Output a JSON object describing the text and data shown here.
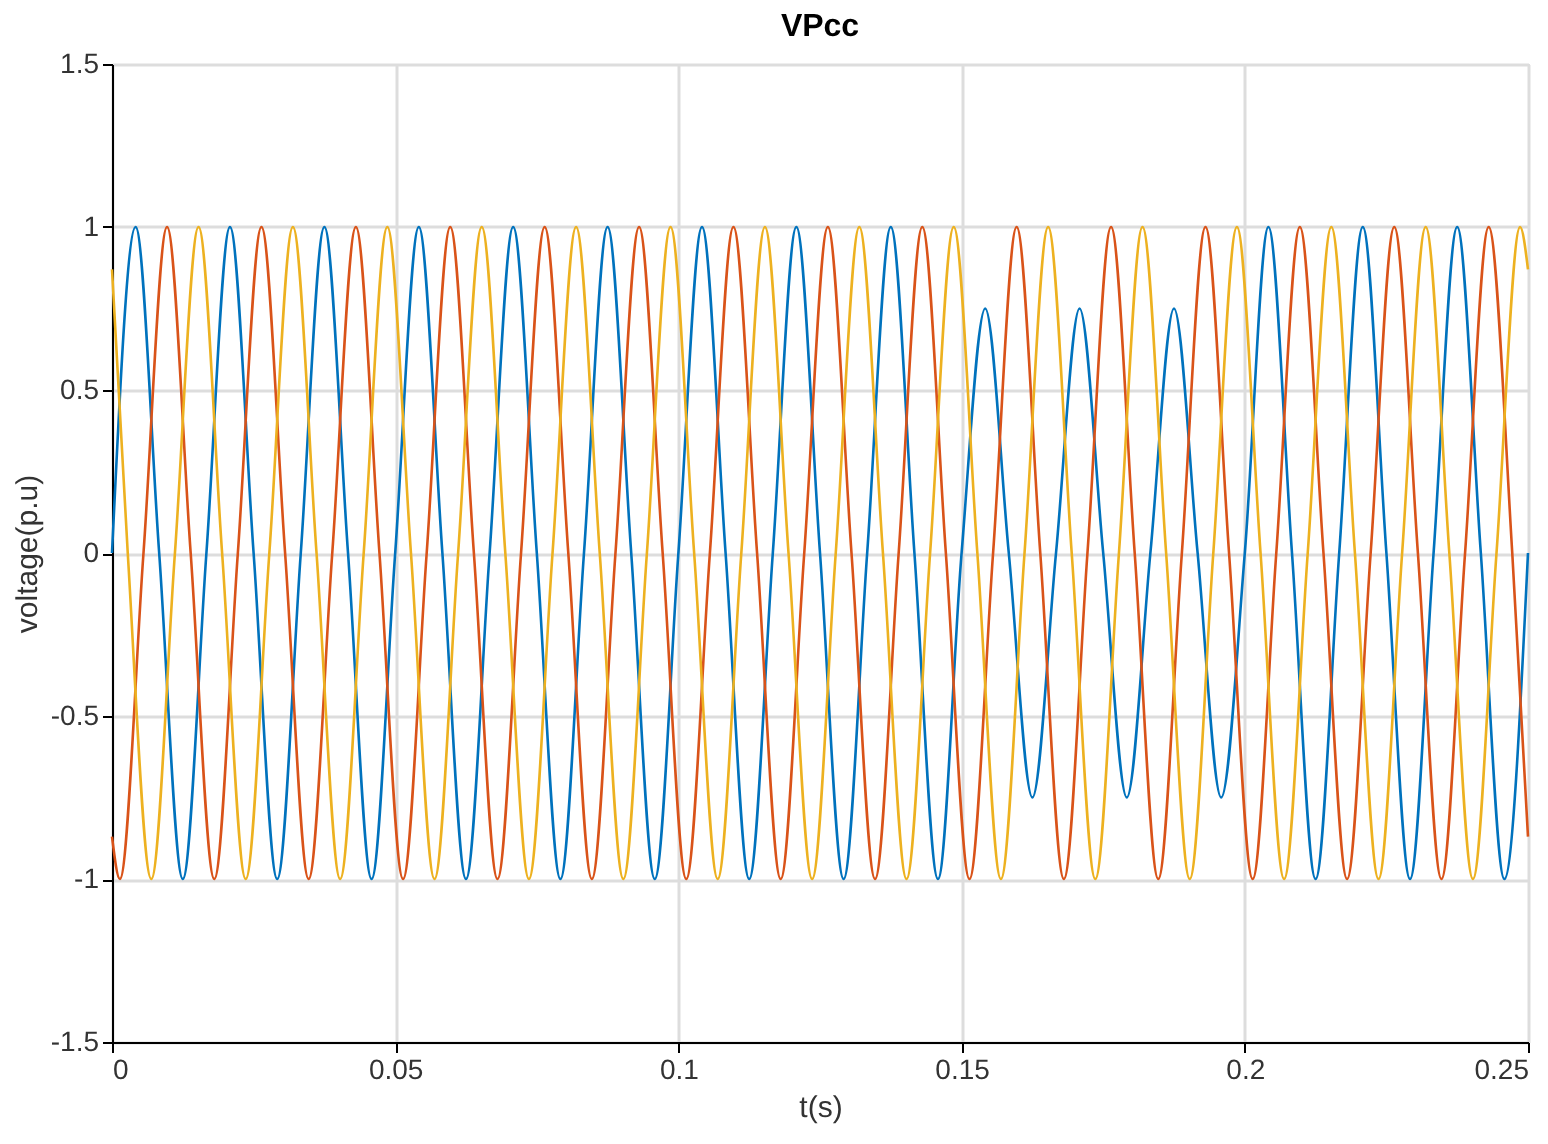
{
  "chart_data": {
    "type": "line",
    "title": "VPcc",
    "xlabel": "t(s)",
    "ylabel": "voltage(p.u)",
    "xlim": [
      0,
      0.25
    ],
    "xticks": [
      0,
      0.05,
      0.1,
      0.15,
      0.2,
      0.25
    ],
    "ylim": [
      -1.5,
      1.5
    ],
    "yticks": [
      -1.5,
      -1,
      -0.5,
      0,
      0.5,
      1,
      1.5
    ],
    "grid": true,
    "marker": "none",
    "line_style": "solid",
    "series": [
      {
        "color": "#0072bd",
        "x": [
          0,
          0.00417,
          0.00833,
          0.0125,
          0.01667,
          0.02083,
          0.025,
          0.02917,
          0.03333,
          0.0375,
          0.04167,
          0.04583,
          0.05,
          0.05417,
          0.05833,
          0.0625,
          0.06667,
          0.07083,
          0.075,
          0.07917,
          0.08333,
          0.0875,
          0.09167,
          0.09583,
          0.1,
          0.10417,
          0.10833,
          0.1125,
          0.11667,
          0.12083,
          0.125,
          0.12917,
          0.13333,
          0.1375,
          0.14167,
          0.14583,
          0.15,
          0.15417,
          0.15833,
          0.1625,
          0.16667,
          0.17083,
          0.175,
          0.17917,
          0.18333,
          0.1875,
          0.19167,
          0.19583,
          0.2,
          0.20417,
          0.20833,
          0.2125,
          0.21667,
          0.22083,
          0.225,
          0.22917,
          0.23333,
          0.2375,
          0.24167,
          0.24583,
          0.25
        ],
        "values": [
          0,
          1,
          0,
          -1,
          0,
          1,
          0,
          -1,
          0,
          1,
          0,
          -1,
          0,
          1,
          0,
          -1,
          0,
          1,
          0,
          -1,
          0,
          1,
          0,
          -1,
          0,
          1,
          0,
          -1,
          0,
          1,
          0,
          -1,
          0,
          1,
          0,
          -1,
          0,
          0.75,
          0,
          -0.75,
          0,
          0.75,
          0,
          -0.75,
          0,
          0.75,
          0,
          -0.75,
          0,
          1,
          0,
          -1,
          0,
          1,
          0,
          -1,
          0,
          1,
          0,
          -1,
          0
        ]
      },
      {
        "color": "#d95319",
        "x": [
          0,
          0.00139,
          0.00556,
          0.00972,
          0.01389,
          0.01806,
          0.02222,
          0.02639,
          0.03056,
          0.03472,
          0.03889,
          0.04306,
          0.04722,
          0.05139,
          0.05556,
          0.05972,
          0.06389,
          0.06806,
          0.07222,
          0.07639,
          0.08056,
          0.08472,
          0.08889,
          0.09306,
          0.09722,
          0.10139,
          0.10556,
          0.10972,
          0.11389,
          0.11806,
          0.12222,
          0.12639,
          0.13056,
          0.13472,
          0.13889,
          0.14306,
          0.14722,
          0.15139,
          0.15556,
          0.15972,
          0.16389,
          0.16806,
          0.17222,
          0.17639,
          0.18056,
          0.18472,
          0.18889,
          0.19306,
          0.19722,
          0.20139,
          0.20556,
          0.20972,
          0.21389,
          0.21806,
          0.22222,
          0.22639,
          0.23056,
          0.23472,
          0.23889,
          0.24306,
          0.24722,
          0.25
        ],
        "values": [
          -0.87,
          -1,
          0,
          1,
          0,
          -1,
          0,
          1,
          0,
          -1,
          0,
          1,
          0,
          -1,
          0,
          1,
          0,
          -1,
          0,
          1,
          0,
          -1,
          0,
          1,
          0,
          -1,
          0,
          1,
          0,
          -1,
          0,
          1,
          0,
          -1,
          0,
          1,
          0,
          -1,
          0,
          1,
          0,
          -1,
          0,
          1,
          0,
          -1,
          0,
          1,
          0,
          -1,
          0,
          1,
          0,
          -1,
          0,
          1,
          0,
          -1,
          0,
          1,
          0,
          -0.87
        ]
      },
      {
        "color": "#edb120",
        "x": [
          0,
          0.00278,
          0.00694,
          0.01111,
          0.01528,
          0.01944,
          0.02361,
          0.02778,
          0.03194,
          0.03611,
          0.04028,
          0.04444,
          0.04861,
          0.05278,
          0.05694,
          0.06111,
          0.06528,
          0.06944,
          0.07361,
          0.07778,
          0.08194,
          0.08611,
          0.09028,
          0.09444,
          0.09861,
          0.10278,
          0.10694,
          0.11111,
          0.11528,
          0.11944,
          0.12361,
          0.12778,
          0.13194,
          0.13611,
          0.14028,
          0.14444,
          0.14861,
          0.15278,
          0.15694,
          0.16111,
          0.16528,
          0.16944,
          0.17361,
          0.17778,
          0.18194,
          0.18611,
          0.19028,
          0.19444,
          0.19861,
          0.20278,
          0.20694,
          0.21111,
          0.21528,
          0.21944,
          0.22361,
          0.22778,
          0.23194,
          0.23611,
          0.24028,
          0.24444,
          0.24861,
          0.25
        ],
        "values": [
          0.87,
          0,
          -1,
          0,
          1,
          0,
          -1,
          0,
          1,
          0,
          -1,
          0,
          1,
          0,
          -1,
          0,
          1,
          0,
          -1,
          0,
          1,
          0,
          -1,
          0,
          1,
          0,
          -1,
          0,
          1,
          0,
          -1,
          0,
          1,
          0,
          -1,
          0,
          1,
          0,
          -1,
          0,
          1,
          0,
          -1,
          0,
          1,
          0,
          -1,
          0,
          1,
          0,
          -1,
          0,
          1,
          0,
          -1,
          0,
          1,
          0,
          -1,
          0,
          1,
          0.87
        ]
      }
    ]
  }
}
